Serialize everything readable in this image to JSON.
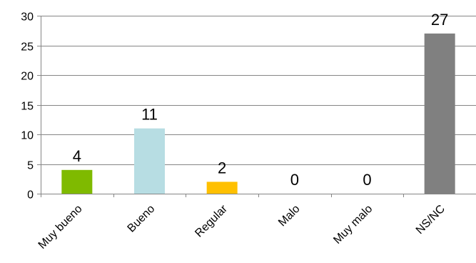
{
  "chart_data": {
    "type": "bar",
    "title": "",
    "xlabel": "",
    "ylabel": "",
    "categories": [
      "Muy bueno",
      "Bueno",
      "Regular",
      "Malo",
      "Muy malo",
      "NS/NC"
    ],
    "values": [
      4,
      11,
      2,
      0,
      0,
      27
    ],
    "data_labels": [
      "4",
      "11",
      "2",
      "0",
      "0",
      "27"
    ],
    "colors": [
      "#7fba00",
      "#b7dde3",
      "#ffc000",
      "#ffffff",
      "#ffffff",
      "#808080"
    ],
    "ylim": [
      0,
      30
    ],
    "yticks": [
      0,
      5,
      10,
      15,
      20,
      25,
      30
    ],
    "ytick_labels": [
      "0",
      "5",
      "10",
      "15",
      "20",
      "25",
      "30"
    ],
    "grid": true,
    "gridline_color": "#868686",
    "legend": "none"
  }
}
